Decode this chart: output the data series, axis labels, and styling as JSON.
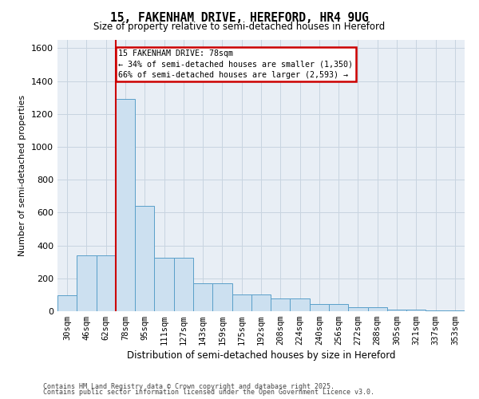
{
  "title_line1": "15, FAKENHAM DRIVE, HEREFORD, HR4 9UG",
  "title_line2": "Size of property relative to semi-detached houses in Hereford",
  "xlabel": "Distribution of semi-detached houses by size in Hereford",
  "ylabel": "Number of semi-detached properties",
  "annotation_line1": "15 FAKENHAM DRIVE: 78sqm",
  "annotation_line2": "← 34% of semi-detached houses are smaller (1,350)",
  "annotation_line3": "66% of semi-detached houses are larger (2,593) →",
  "footer_line1": "Contains HM Land Registry data © Crown copyright and database right 2025.",
  "footer_line2": "Contains public sector information licensed under the Open Government Licence v3.0.",
  "categories": [
    "30sqm",
    "46sqm",
    "62sqm",
    "78sqm",
    "95sqm",
    "111sqm",
    "127sqm",
    "143sqm",
    "159sqm",
    "175sqm",
    "192sqm",
    "208sqm",
    "224sqm",
    "240sqm",
    "256sqm",
    "272sqm",
    "288sqm",
    "305sqm",
    "321sqm",
    "337sqm",
    "353sqm"
  ],
  "values": [
    95,
    340,
    340,
    1290,
    640,
    325,
    325,
    170,
    170,
    100,
    100,
    80,
    80,
    45,
    45,
    25,
    25,
    10,
    10,
    5,
    5
  ],
  "bar_color": "#cce0f0",
  "bar_edge_color": "#5a9fc9",
  "property_bin": 3,
  "vline_color": "#cc0000",
  "annotation_box_edge_color": "#cc0000",
  "grid_color": "#c8d4e0",
  "background_color": "#e8eef5",
  "ylim": [
    0,
    1650
  ],
  "yticks": [
    0,
    200,
    400,
    600,
    800,
    1000,
    1200,
    1400,
    1600
  ]
}
